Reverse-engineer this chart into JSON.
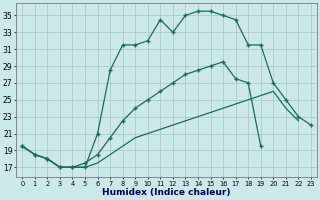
{
  "xlabel": "Humidex (Indice chaleur)",
  "bg_color": "#cce8e8",
  "grid_color": "#aacaca",
  "line_color": "#1a6b5a",
  "x_hours": [
    0,
    1,
    2,
    3,
    4,
    5,
    6,
    7,
    8,
    9,
    10,
    11,
    12,
    13,
    14,
    15,
    16,
    17,
    18,
    19,
    20,
    21,
    22,
    23
  ],
  "y_ticks": [
    17,
    19,
    21,
    23,
    25,
    27,
    29,
    31,
    33,
    35
  ],
  "ylim": [
    15.8,
    36.5
  ],
  "xlim": [
    -0.5,
    23.5
  ],
  "curve_top": [
    19.5,
    18.5,
    18.0,
    17.0,
    17.0,
    17.0,
    21.0,
    28.5,
    31.5,
    31.5,
    32.0,
    34.5,
    33.0,
    35.0,
    35.5,
    35.5,
    35.0,
    34.5,
    31.5,
    31.5,
    27.0,
    25.0,
    23.0,
    22.0
  ],
  "curve_mid": [
    19.5,
    18.5,
    18.0,
    17.0,
    17.0,
    17.5,
    18.5,
    20.5,
    22.5,
    24.0,
    25.0,
    26.0,
    27.0,
    28.0,
    28.5,
    29.0,
    29.5,
    27.5,
    27.0,
    19.5,
    null,
    null,
    null,
    null
  ],
  "curve_bot": [
    19.5,
    18.5,
    18.0,
    17.0,
    17.0,
    17.0,
    17.5,
    18.5,
    19.5,
    20.5,
    21.0,
    21.5,
    22.0,
    22.5,
    23.0,
    23.5,
    24.0,
    24.5,
    25.0,
    25.5,
    26.0,
    24.0,
    22.5,
    null
  ]
}
